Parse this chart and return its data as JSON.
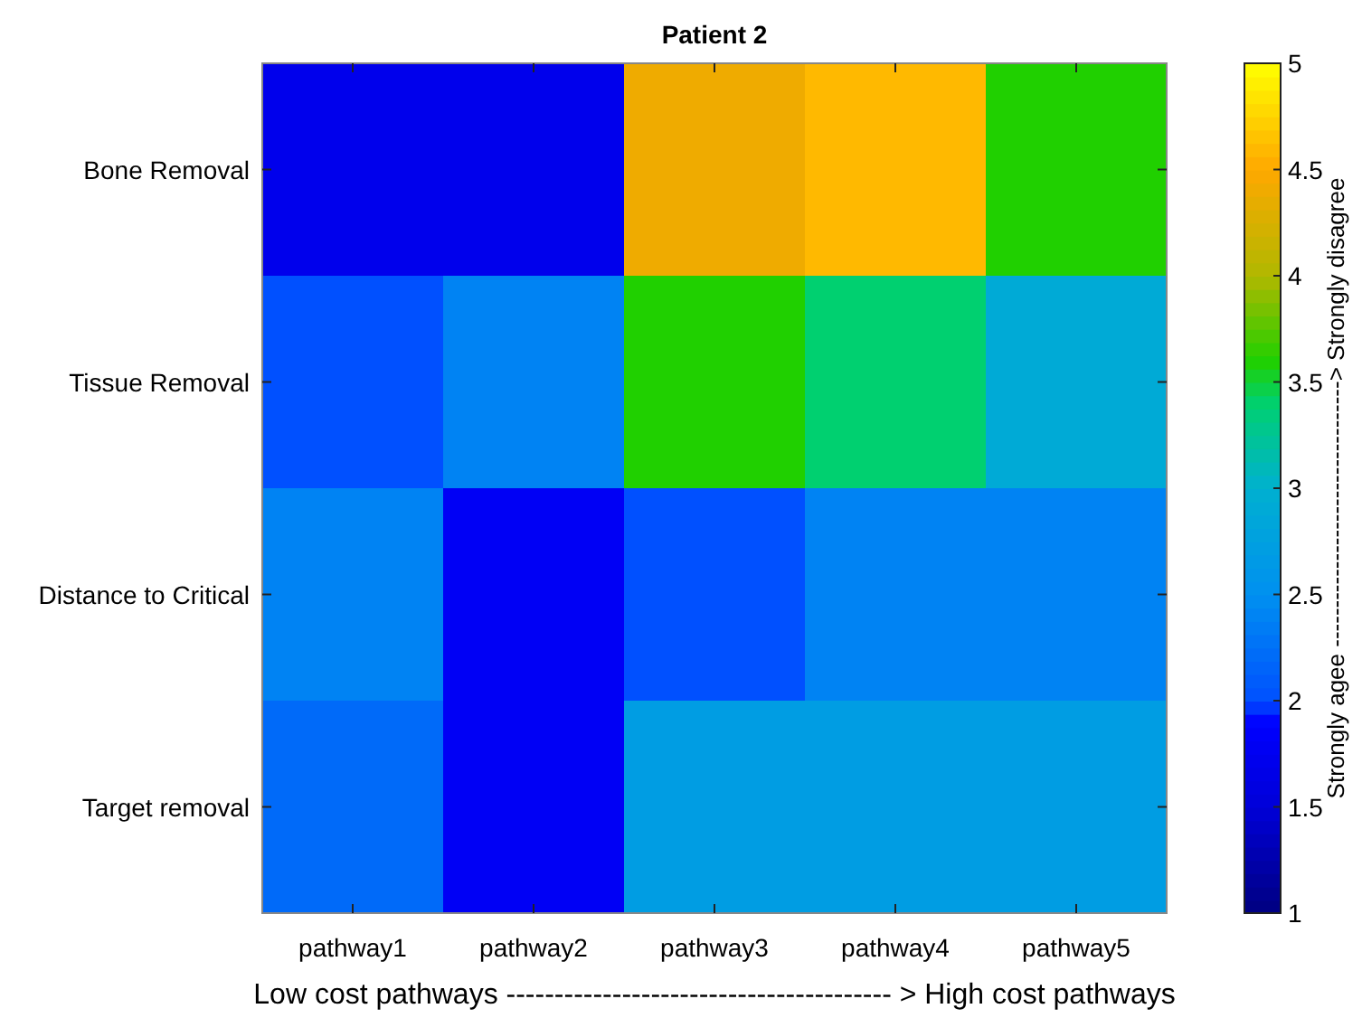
{
  "chart_data": {
    "type": "heatmap",
    "title": "Patient 2",
    "xlabel": "Low cost pathways ---------------------------------------- > High cost pathways",
    "clabel": "Strongly agee ----------------------------------> Strongly disagree",
    "categories": [
      "pathway1",
      "pathway2",
      "pathway3",
      "pathway4",
      "pathway5"
    ],
    "y_categories": [
      "Bone Removal",
      "Tissue Removal",
      "Distance to Critical",
      "Target removal"
    ],
    "cells": [
      [
        1.7,
        1.7,
        4.4,
        4.6,
        3.6
      ],
      [
        2.0,
        2.4,
        3.6,
        3.4,
        2.9
      ],
      [
        2.4,
        1.8,
        2.0,
        2.4,
        2.4
      ],
      [
        2.2,
        1.8,
        2.7,
        2.7,
        2.7
      ]
    ],
    "clim": [
      1,
      5
    ],
    "cticks": [
      1,
      1.5,
      2,
      2.5,
      3,
      3.5,
      4,
      4.5,
      5
    ]
  }
}
